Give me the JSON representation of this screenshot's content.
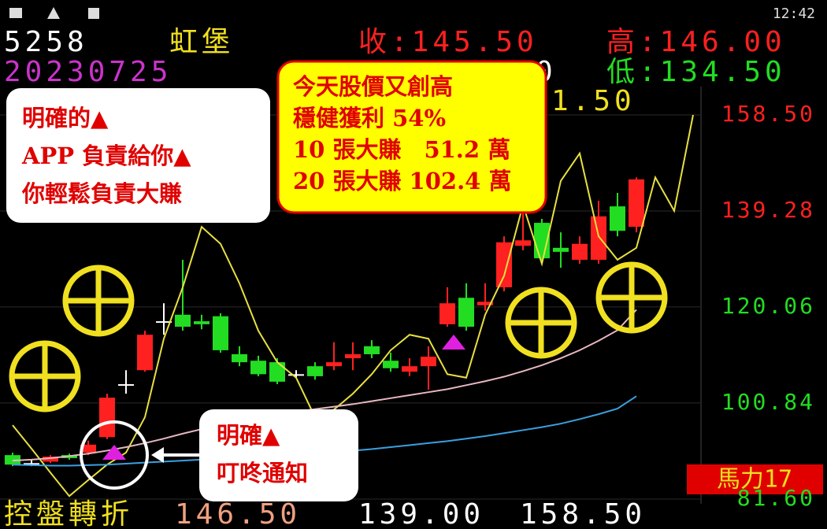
{
  "status_bar": {
    "time": "12:42"
  },
  "header": {
    "code": "5258",
    "name": "虹堡",
    "close": "收:145.50",
    "high": "高:146.00",
    "date": "20230725",
    "hidden": "0",
    "low": "低:134.50",
    "partial": "1.50"
  },
  "notes": {
    "left": [
      "明確的▲",
      "APP 負責給你▲",
      "你輕鬆負責大賺"
    ],
    "center": [
      "今天股價又創高",
      "穩健獲利 54%",
      "10 張大賺　51.2 萬",
      "20 張大賺 102.4 萬"
    ],
    "bottom": [
      "明確▲",
      "叮咚通知"
    ]
  },
  "footer": {
    "label": "控盤轉折",
    "v1": "146.50",
    "v2": "139.00",
    "v3": "158.50",
    "badge": "馬力17"
  },
  "chart_data": {
    "type": "candlestick",
    "ylim": [
      81.6,
      158.5
    ],
    "yticks": [
      {
        "value": 158.5,
        "label": "158.50"
      },
      {
        "value": 139.28,
        "label": "139.28"
      },
      {
        "value": 120.06,
        "label": "120.06"
      },
      {
        "value": 100.84,
        "label": "100.84"
      },
      {
        "value": 81.6,
        "label": "81.60"
      }
    ],
    "ytick_colors": [
      "#ff2020",
      "#ff2020",
      "#22dd22",
      "#22dd22",
      "#22dd22"
    ],
    "grid": true,
    "up_color": "#ff2020",
    "down_color": "#22dd22",
    "doji_color": "#ffffff",
    "ohlc": [
      [
        90.4,
        90.9,
        88.2,
        88.5
      ],
      [
        88.8,
        89.5,
        88.2,
        88.8
      ],
      [
        89.1,
        90.4,
        88.8,
        90.1
      ],
      [
        90.4,
        90.7,
        89.5,
        89.8
      ],
      [
        90.9,
        93.3,
        90.4,
        92.5
      ],
      [
        94.0,
        102.7,
        93.6,
        101.9
      ],
      [
        104.6,
        107.4,
        102.7,
        104.6
      ],
      [
        107.4,
        115.3,
        107.1,
        114.5
      ],
      [
        117.2,
        120.8,
        114.5,
        117.2
      ],
      [
        118.5,
        129.5,
        115.3,
        116.1
      ],
      [
        117.2,
        118.5,
        115.6,
        116.6
      ],
      [
        118.2,
        118.8,
        110.9,
        111.4
      ],
      [
        110.6,
        112.2,
        108.2,
        109.0
      ],
      [
        109.3,
        110.3,
        106.2,
        106.6
      ],
      [
        109.0,
        109.8,
        104.6,
        105.1
      ],
      [
        106.6,
        107.4,
        105.9,
        106.6
      ],
      [
        108.2,
        109.0,
        105.5,
        106.2
      ],
      [
        108.2,
        113.0,
        107.4,
        109.0
      ],
      [
        109.8,
        113.0,
        107.4,
        110.6
      ],
      [
        112.2,
        113.4,
        109.8,
        110.6
      ],
      [
        109.3,
        110.9,
        107.1,
        107.8
      ],
      [
        107.1,
        109.8,
        106.2,
        108.2
      ],
      [
        108.2,
        112.2,
        103.5,
        110.1
      ],
      [
        116.6,
        124.0,
        116.1,
        120.8
      ],
      [
        121.9,
        124.8,
        115.3,
        116.1
      ],
      [
        120.4,
        124.8,
        119.3,
        121.1
      ],
      [
        124.0,
        134.2,
        123.2,
        133.0
      ],
      [
        132.3,
        140.2,
        131.4,
        133.4
      ],
      [
        136.9,
        137.7,
        128.7,
        129.8
      ],
      [
        131.9,
        135.0,
        127.9,
        131.1
      ],
      [
        129.5,
        134.2,
        128.7,
        132.7
      ],
      [
        129.5,
        141.3,
        128.7,
        138.2
      ],
      [
        140.2,
        142.9,
        134.2,
        135.3
      ],
      [
        136.1,
        146.0,
        135.0,
        145.6
      ]
    ],
    "series": [
      {
        "color": "#e8e040",
        "values": [
          96.4,
          91.7,
          86.9,
          82.2,
          85.4,
          88.5,
          90.9,
          98.0,
          113.7,
          124.0,
          136.1,
          132.7,
          124.8,
          115.3,
          109.0,
          105.9,
          98.0,
          99.5,
          102.7,
          106.6,
          111.4,
          114.5,
          113.7,
          106.6,
          105.9,
          118.5,
          126.3,
          140.5,
          128.7,
          145.3,
          150.8,
          134.2,
          129.5,
          131.9,
          146.0,
          139.3,
          158.5
        ]
      },
      {
        "color": "#e8b8c0",
        "values": [
          89.3,
          89.5,
          89.8,
          90.2,
          90.7,
          91.3,
          92.0,
          92.8,
          93.7,
          94.7,
          95.6,
          96.5,
          97.3,
          98.0,
          98.6,
          99.1,
          99.6,
          100.1,
          100.6,
          101.2,
          101.8,
          102.4,
          103.0,
          103.6,
          104.4,
          105.2,
          106.1,
          107.2,
          108.4,
          109.8,
          111.4,
          113.3,
          115.4,
          119.5
        ]
      },
      {
        "color": "#3aa0e0",
        "values": [
          88.5,
          88.4,
          88.3,
          88.3,
          88.4,
          88.5,
          88.7,
          88.9,
          89.1,
          89.3,
          89.5,
          89.7,
          89.9,
          90.1,
          90.3,
          90.5,
          90.7,
          91.0,
          91.3,
          91.6,
          92.0,
          92.4,
          92.8,
          93.2,
          93.7,
          94.2,
          94.8,
          95.4,
          96.0,
          96.7,
          97.6,
          98.6,
          99.7,
          102.2
        ]
      }
    ]
  }
}
